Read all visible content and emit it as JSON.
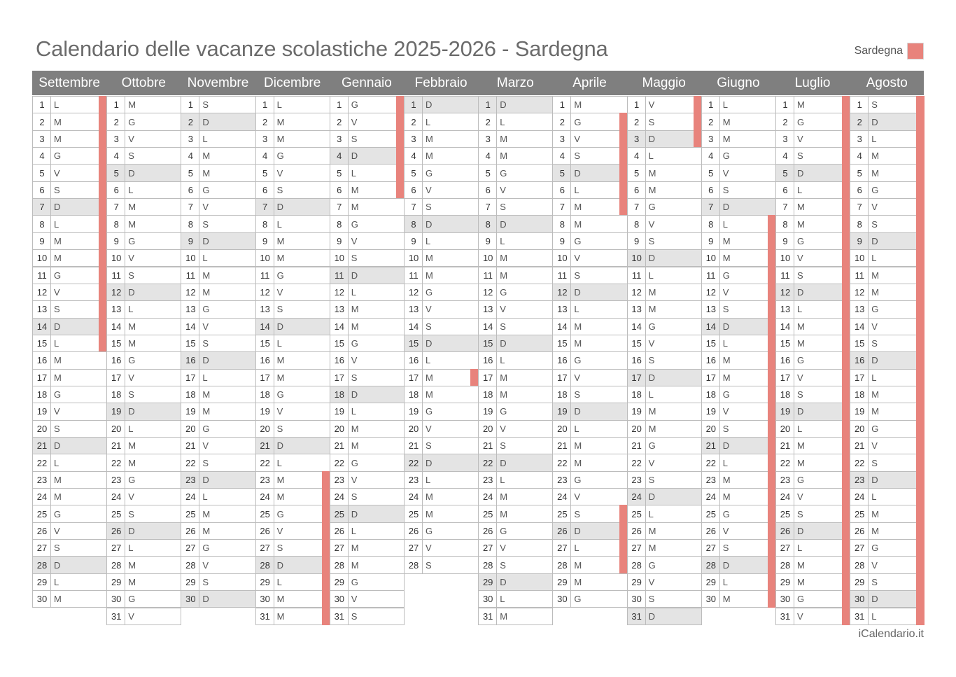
{
  "title": "Calendario delle vacanze scolastiche 2025-2026 - Sardegna",
  "legend": {
    "label": "Sardegna",
    "color": "#e8837c"
  },
  "footer": "iCalendario.it",
  "colors": {
    "header": "#7f7f7f",
    "weekend": "#e4e4e4",
    "holiday": "#e8837c",
    "grid": "#bcbcbc"
  },
  "months": [
    {
      "name": "Settembre",
      "days": 30,
      "start_weekday": 0,
      "holidays": [
        1,
        2,
        3,
        4,
        5,
        6,
        7,
        8,
        9,
        10,
        11,
        12,
        13,
        14,
        15
      ]
    },
    {
      "name": "Ottobre",
      "days": 31,
      "start_weekday": 2,
      "holidays": []
    },
    {
      "name": "Novembre",
      "days": 30,
      "start_weekday": 5,
      "holidays": []
    },
    {
      "name": "Dicembre",
      "days": 31,
      "start_weekday": 0,
      "holidays": [
        23,
        24,
        25,
        26,
        27,
        28,
        29,
        30,
        31
      ]
    },
    {
      "name": "Gennaio",
      "days": 31,
      "start_weekday": 3,
      "holidays": [
        1,
        2,
        3,
        4,
        5,
        6
      ]
    },
    {
      "name": "Febbraio",
      "days": 28,
      "start_weekday": 6,
      "holidays": [
        17
      ]
    },
    {
      "name": "Marzo",
      "days": 31,
      "start_weekday": 6,
      "holidays": []
    },
    {
      "name": "Aprile",
      "days": 30,
      "start_weekday": 2,
      "holidays": [
        2,
        3,
        4,
        5,
        6,
        7,
        25,
        26,
        27,
        28
      ]
    },
    {
      "name": "Maggio",
      "days": 31,
      "start_weekday": 4,
      "holidays": [
        1,
        2,
        3
      ]
    },
    {
      "name": "Giugno",
      "days": 30,
      "start_weekday": 0,
      "holidays": [
        8,
        9,
        10,
        11,
        12,
        13,
        14,
        15,
        16,
        17,
        18,
        19,
        20,
        21,
        22,
        23,
        24,
        25,
        26,
        27,
        28,
        29,
        30
      ]
    },
    {
      "name": "Luglio",
      "days": 31,
      "start_weekday": 2,
      "holidays": [
        1,
        2,
        3,
        4,
        5,
        6,
        7,
        8,
        9,
        10,
        11,
        12,
        13,
        14,
        15,
        16,
        17,
        18,
        19,
        20,
        21,
        22,
        23,
        24,
        25,
        26,
        27,
        28,
        29,
        30,
        31
      ]
    },
    {
      "name": "Agosto",
      "days": 31,
      "start_weekday": 5,
      "holidays": [
        1,
        2,
        3,
        4,
        5,
        6,
        7,
        8,
        9,
        10,
        11,
        12,
        13,
        14,
        15,
        16,
        17,
        18,
        19,
        20,
        21,
        22,
        23,
        24,
        25,
        26,
        27,
        28,
        29,
        30,
        31
      ]
    }
  ],
  "weekday_letters": [
    "L",
    "M",
    "M",
    "G",
    "V",
    "S",
    "D"
  ]
}
